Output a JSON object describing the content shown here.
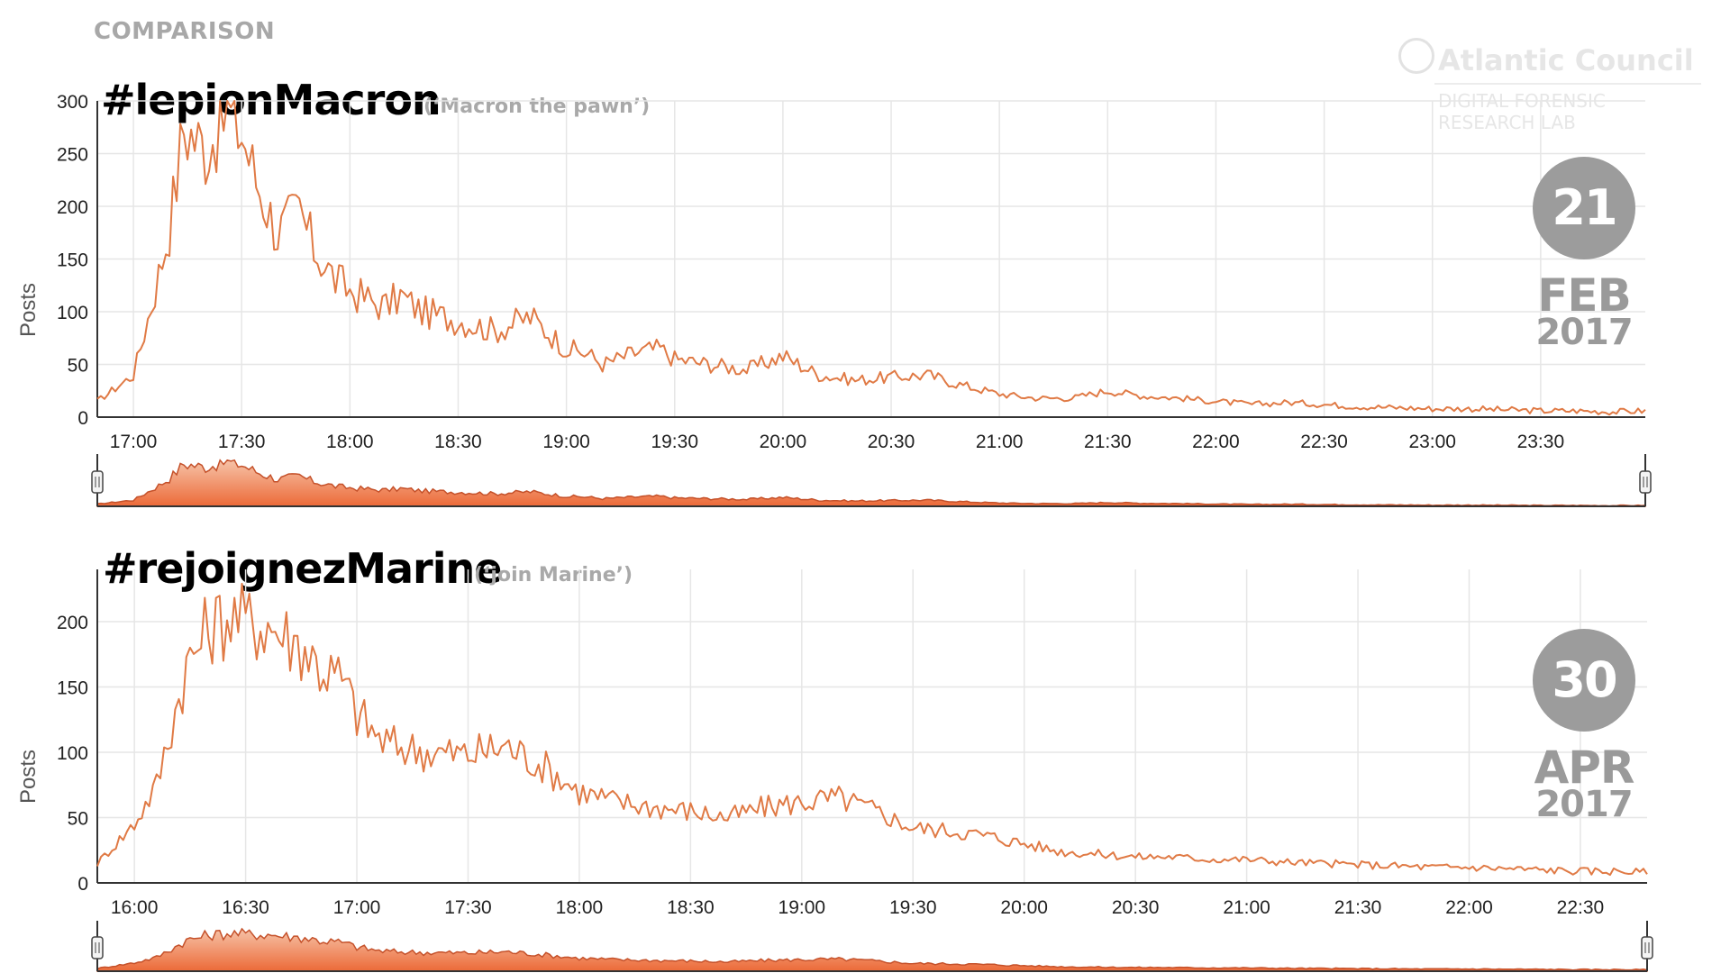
{
  "header": {
    "kicker": "COMPARISON"
  },
  "logo": {
    "name": "Atlantic Council",
    "sub_line1": "DIGITAL FORENSIC",
    "sub_line2": "RESEARCH LAB",
    "icon": "globe-icon"
  },
  "colors": {
    "line": "#e07a45",
    "nav_fill": "#ec6a38",
    "grid": "#e6e6e6",
    "axis": "#333333",
    "badge": "#9c9c9c"
  },
  "charts": [
    {
      "hashtag": "#lepionMacron",
      "translation": "(‘Macron the pawn’)",
      "badge": {
        "day": "21",
        "month": "FEB",
        "year": "2017"
      }
    },
    {
      "hashtag": "#rejoignezMarine",
      "translation": "(‘join Marine’)",
      "badge": {
        "day": "30",
        "month": "APR",
        "year": "2017"
      }
    }
  ],
  "chart_data": [
    {
      "type": "line",
      "ylabel": "Posts",
      "ylim": [
        0,
        300
      ],
      "yticks": [
        0,
        50,
        100,
        150,
        200,
        250,
        300
      ],
      "xlim": [
        "16:50",
        "23:59"
      ],
      "xticks": [
        "17:00",
        "17:30",
        "18:00",
        "18:30",
        "19:00",
        "19:30",
        "20:00",
        "20:30",
        "21:00",
        "21:30",
        "22:00",
        "22:30",
        "23:00",
        "23:30"
      ],
      "grid": true,
      "range_selector": true,
      "x": [
        "16:50",
        "17:00",
        "17:06",
        "17:10",
        "17:14",
        "17:20",
        "17:26",
        "17:30",
        "17:34",
        "17:40",
        "17:46",
        "17:50",
        "17:56",
        "18:00",
        "18:06",
        "18:10",
        "18:14",
        "18:20",
        "18:26",
        "18:30",
        "18:40",
        "18:50",
        "19:00",
        "19:06",
        "19:10",
        "19:20",
        "19:26",
        "19:30",
        "19:40",
        "19:50",
        "20:00",
        "20:10",
        "20:20",
        "20:30",
        "20:40",
        "20:50",
        "21:00",
        "21:10",
        "21:20",
        "21:30",
        "21:40",
        "21:50",
        "22:00",
        "22:10",
        "22:20",
        "22:30",
        "22:40",
        "22:50",
        "23:00",
        "23:10",
        "23:20",
        "23:30",
        "23:40",
        "23:50",
        "23:59"
      ],
      "y": [
        15,
        40,
        120,
        180,
        275,
        255,
        290,
        270,
        225,
        175,
        195,
        160,
        130,
        120,
        110,
        105,
        115,
        100,
        95,
        92,
        82,
        95,
        65,
        60,
        50,
        62,
        65,
        55,
        50,
        45,
        58,
        40,
        35,
        38,
        40,
        30,
        22,
        18,
        18,
        25,
        20,
        18,
        15,
        12,
        14,
        12,
        10,
        9,
        8,
        8,
        7,
        6,
        6,
        5,
        6
      ]
    },
    {
      "type": "line",
      "ylabel": "Posts",
      "ylim": [
        0,
        240
      ],
      "yticks": [
        0,
        50,
        100,
        150,
        200
      ],
      "xlim": [
        "15:50",
        "22:48"
      ],
      "xticks": [
        "16:00",
        "16:30",
        "17:00",
        "17:30",
        "18:00",
        "18:30",
        "19:00",
        "19:30",
        "20:00",
        "20:30",
        "21:00",
        "21:30",
        "22:00",
        "22:30"
      ],
      "grid": true,
      "range_selector": true,
      "x": [
        "15:50",
        "16:00",
        "16:06",
        "16:10",
        "16:14",
        "16:20",
        "16:26",
        "16:30",
        "16:36",
        "16:40",
        "16:46",
        "16:50",
        "16:56",
        "17:00",
        "17:06",
        "17:10",
        "17:20",
        "17:30",
        "17:40",
        "17:50",
        "18:00",
        "18:10",
        "18:20",
        "18:30",
        "18:40",
        "18:50",
        "19:00",
        "19:10",
        "19:20",
        "19:30",
        "19:40",
        "19:50",
        "20:00",
        "20:10",
        "20:20",
        "20:30",
        "20:40",
        "20:50",
        "21:00",
        "21:10",
        "21:20",
        "21:30",
        "21:40",
        "21:50",
        "22:00",
        "22:10",
        "22:20",
        "22:30",
        "22:40",
        "22:48"
      ],
      "y": [
        15,
        45,
        75,
        120,
        165,
        195,
        205,
        200,
        198,
        190,
        180,
        165,
        155,
        130,
        110,
        105,
        100,
        98,
        105,
        90,
        70,
        62,
        58,
        55,
        50,
        58,
        62,
        65,
        55,
        42,
        40,
        36,
        30,
        24,
        22,
        20,
        20,
        18,
        18,
        16,
        15,
        14,
        13,
        12,
        12,
        11,
        10,
        9,
        9,
        8
      ]
    }
  ]
}
